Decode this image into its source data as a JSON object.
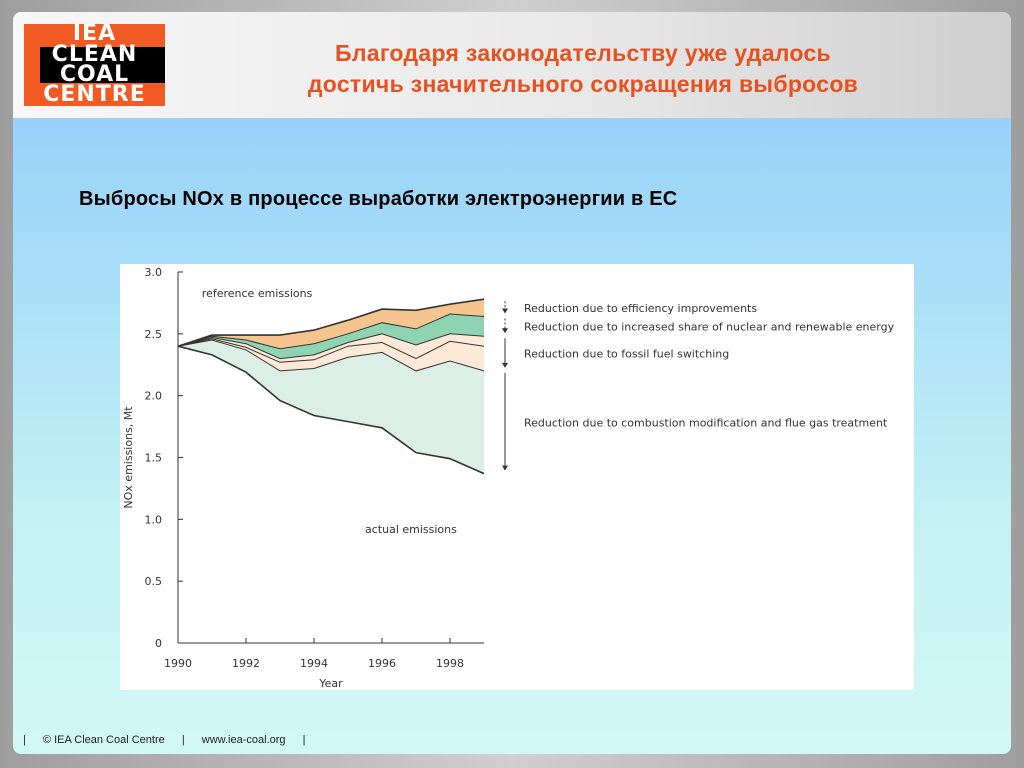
{
  "logo": {
    "lines": [
      "IEA",
      "CLEAN",
      "COAL",
      "CENTRE"
    ]
  },
  "header": {
    "title_line1": "Благодаря законодательству уже удалось",
    "title_line2": "достичь значительного сокращения выбросов"
  },
  "subtitle": "Выбросы NOx в процессе выработки электроэнергии в ЕС",
  "footer": {
    "sep": "|",
    "copyright": "© IEA Clean Coal Centre",
    "url": "www.iea-coal.org"
  },
  "colors": {
    "combustion_band": "#dcefe6",
    "fuel_switch_band": "#fde9d8",
    "nuclear_band": "#8fd4b2",
    "efficiency_band": "#f6c48f",
    "line": "#333333"
  },
  "chart_data": {
    "type": "area",
    "title": "",
    "xlabel": "Year",
    "ylabel": "NOx emissions, Mt",
    "ylim": [
      0,
      3.0
    ],
    "xlim": [
      1990,
      1999
    ],
    "yticks": [
      "0",
      "0.5",
      "1.0",
      "1.5",
      "2.0",
      "2.5",
      "3.0"
    ],
    "xticks": [
      "1990",
      "1992",
      "1994",
      "1996",
      "1998"
    ],
    "x": [
      1990,
      1991,
      1992,
      1993,
      1994,
      1995,
      1996,
      1997,
      1998,
      1999
    ],
    "series": [
      {
        "name": "reference emissions",
        "values": [
          2.4,
          2.49,
          2.49,
          2.49,
          2.53,
          2.61,
          2.7,
          2.69,
          2.74,
          2.78
        ]
      },
      {
        "values": [
          2.4,
          2.48,
          2.45,
          2.38,
          2.42,
          2.5,
          2.59,
          2.54,
          2.66,
          2.64
        ]
      },
      {
        "values": [
          2.4,
          2.47,
          2.42,
          2.3,
          2.33,
          2.43,
          2.5,
          2.41,
          2.5,
          2.48
        ]
      },
      {
        "values": [
          2.4,
          2.46,
          2.39,
          2.27,
          2.29,
          2.4,
          2.43,
          2.3,
          2.44,
          2.4
        ]
      },
      {
        "values": [
          2.4,
          2.45,
          2.37,
          2.2,
          2.22,
          2.31,
          2.35,
          2.2,
          2.28,
          2.2
        ]
      },
      {
        "name": "actual emissions",
        "values": [
          2.4,
          2.33,
          2.19,
          1.96,
          1.84,
          1.79,
          1.74,
          1.54,
          1.49,
          1.37
        ]
      }
    ],
    "annotations": {
      "reference": "reference emissions",
      "actual": "actual emissions"
    },
    "reductions": [
      {
        "label": "Reduction due to efficiency improvements",
        "from": 2.78,
        "to": 2.64
      },
      {
        "label": "Reduction due to increased share of nuclear and renewable energy",
        "from": 2.64,
        "to": 2.48
      },
      {
        "label": "Reduction due to fossil fuel switching",
        "from": 2.48,
        "to": 2.2
      },
      {
        "label": "Reduction due to combustion modification and flue gas treatment",
        "from": 2.2,
        "to": 1.37
      }
    ]
  }
}
